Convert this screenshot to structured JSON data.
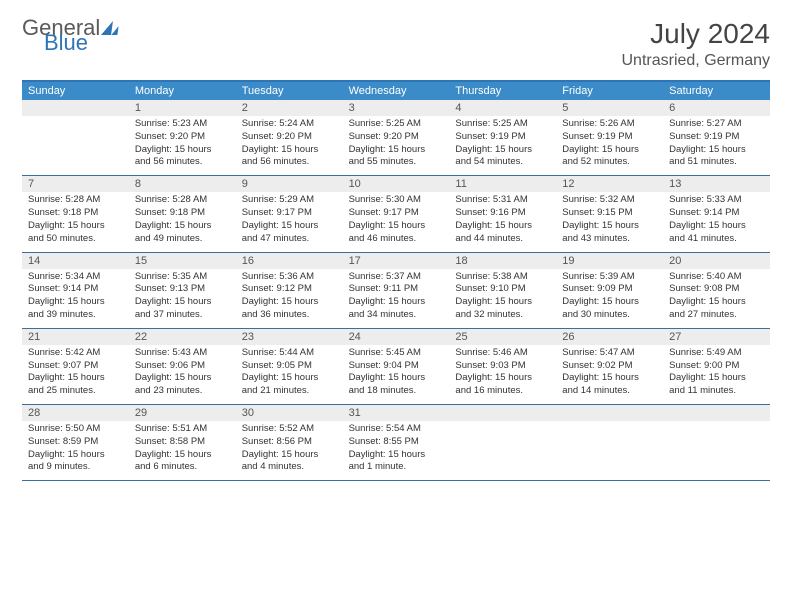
{
  "brand": {
    "part1": "General",
    "part2": "Blue"
  },
  "header": {
    "month_title": "July 2024",
    "location": "Untrasried, Germany"
  },
  "calendar": {
    "header_bg": "#3b8bc9",
    "header_text": "#ffffff",
    "daynum_bg": "#ededed",
    "border_color": "#3b6fa0",
    "cell_fontsize": 9.5,
    "days_of_week": [
      "Sunday",
      "Monday",
      "Tuesday",
      "Wednesday",
      "Thursday",
      "Friday",
      "Saturday"
    ],
    "start_offset": 1,
    "days": [
      {
        "n": 1,
        "sunrise": "5:23 AM",
        "sunset": "9:20 PM",
        "daylight": "15 hours and 56 minutes."
      },
      {
        "n": 2,
        "sunrise": "5:24 AM",
        "sunset": "9:20 PM",
        "daylight": "15 hours and 56 minutes."
      },
      {
        "n": 3,
        "sunrise": "5:25 AM",
        "sunset": "9:20 PM",
        "daylight": "15 hours and 55 minutes."
      },
      {
        "n": 4,
        "sunrise": "5:25 AM",
        "sunset": "9:19 PM",
        "daylight": "15 hours and 54 minutes."
      },
      {
        "n": 5,
        "sunrise": "5:26 AM",
        "sunset": "9:19 PM",
        "daylight": "15 hours and 52 minutes."
      },
      {
        "n": 6,
        "sunrise": "5:27 AM",
        "sunset": "9:19 PM",
        "daylight": "15 hours and 51 minutes."
      },
      {
        "n": 7,
        "sunrise": "5:28 AM",
        "sunset": "9:18 PM",
        "daylight": "15 hours and 50 minutes."
      },
      {
        "n": 8,
        "sunrise": "5:28 AM",
        "sunset": "9:18 PM",
        "daylight": "15 hours and 49 minutes."
      },
      {
        "n": 9,
        "sunrise": "5:29 AM",
        "sunset": "9:17 PM",
        "daylight": "15 hours and 47 minutes."
      },
      {
        "n": 10,
        "sunrise": "5:30 AM",
        "sunset": "9:17 PM",
        "daylight": "15 hours and 46 minutes."
      },
      {
        "n": 11,
        "sunrise": "5:31 AM",
        "sunset": "9:16 PM",
        "daylight": "15 hours and 44 minutes."
      },
      {
        "n": 12,
        "sunrise": "5:32 AM",
        "sunset": "9:15 PM",
        "daylight": "15 hours and 43 minutes."
      },
      {
        "n": 13,
        "sunrise": "5:33 AM",
        "sunset": "9:14 PM",
        "daylight": "15 hours and 41 minutes."
      },
      {
        "n": 14,
        "sunrise": "5:34 AM",
        "sunset": "9:14 PM",
        "daylight": "15 hours and 39 minutes."
      },
      {
        "n": 15,
        "sunrise": "5:35 AM",
        "sunset": "9:13 PM",
        "daylight": "15 hours and 37 minutes."
      },
      {
        "n": 16,
        "sunrise": "5:36 AM",
        "sunset": "9:12 PM",
        "daylight": "15 hours and 36 minutes."
      },
      {
        "n": 17,
        "sunrise": "5:37 AM",
        "sunset": "9:11 PM",
        "daylight": "15 hours and 34 minutes."
      },
      {
        "n": 18,
        "sunrise": "5:38 AM",
        "sunset": "9:10 PM",
        "daylight": "15 hours and 32 minutes."
      },
      {
        "n": 19,
        "sunrise": "5:39 AM",
        "sunset": "9:09 PM",
        "daylight": "15 hours and 30 minutes."
      },
      {
        "n": 20,
        "sunrise": "5:40 AM",
        "sunset": "9:08 PM",
        "daylight": "15 hours and 27 minutes."
      },
      {
        "n": 21,
        "sunrise": "5:42 AM",
        "sunset": "9:07 PM",
        "daylight": "15 hours and 25 minutes."
      },
      {
        "n": 22,
        "sunrise": "5:43 AM",
        "sunset": "9:06 PM",
        "daylight": "15 hours and 23 minutes."
      },
      {
        "n": 23,
        "sunrise": "5:44 AM",
        "sunset": "9:05 PM",
        "daylight": "15 hours and 21 minutes."
      },
      {
        "n": 24,
        "sunrise": "5:45 AM",
        "sunset": "9:04 PM",
        "daylight": "15 hours and 18 minutes."
      },
      {
        "n": 25,
        "sunrise": "5:46 AM",
        "sunset": "9:03 PM",
        "daylight": "15 hours and 16 minutes."
      },
      {
        "n": 26,
        "sunrise": "5:47 AM",
        "sunset": "9:02 PM",
        "daylight": "15 hours and 14 minutes."
      },
      {
        "n": 27,
        "sunrise": "5:49 AM",
        "sunset": "9:00 PM",
        "daylight": "15 hours and 11 minutes."
      },
      {
        "n": 28,
        "sunrise": "5:50 AM",
        "sunset": "8:59 PM",
        "daylight": "15 hours and 9 minutes."
      },
      {
        "n": 29,
        "sunrise": "5:51 AM",
        "sunset": "8:58 PM",
        "daylight": "15 hours and 6 minutes."
      },
      {
        "n": 30,
        "sunrise": "5:52 AM",
        "sunset": "8:56 PM",
        "daylight": "15 hours and 4 minutes."
      },
      {
        "n": 31,
        "sunrise": "5:54 AM",
        "sunset": "8:55 PM",
        "daylight": "15 hours and 1 minute."
      }
    ],
    "labels": {
      "sunrise": "Sunrise:",
      "sunset": "Sunset:",
      "daylight": "Daylight:"
    }
  }
}
